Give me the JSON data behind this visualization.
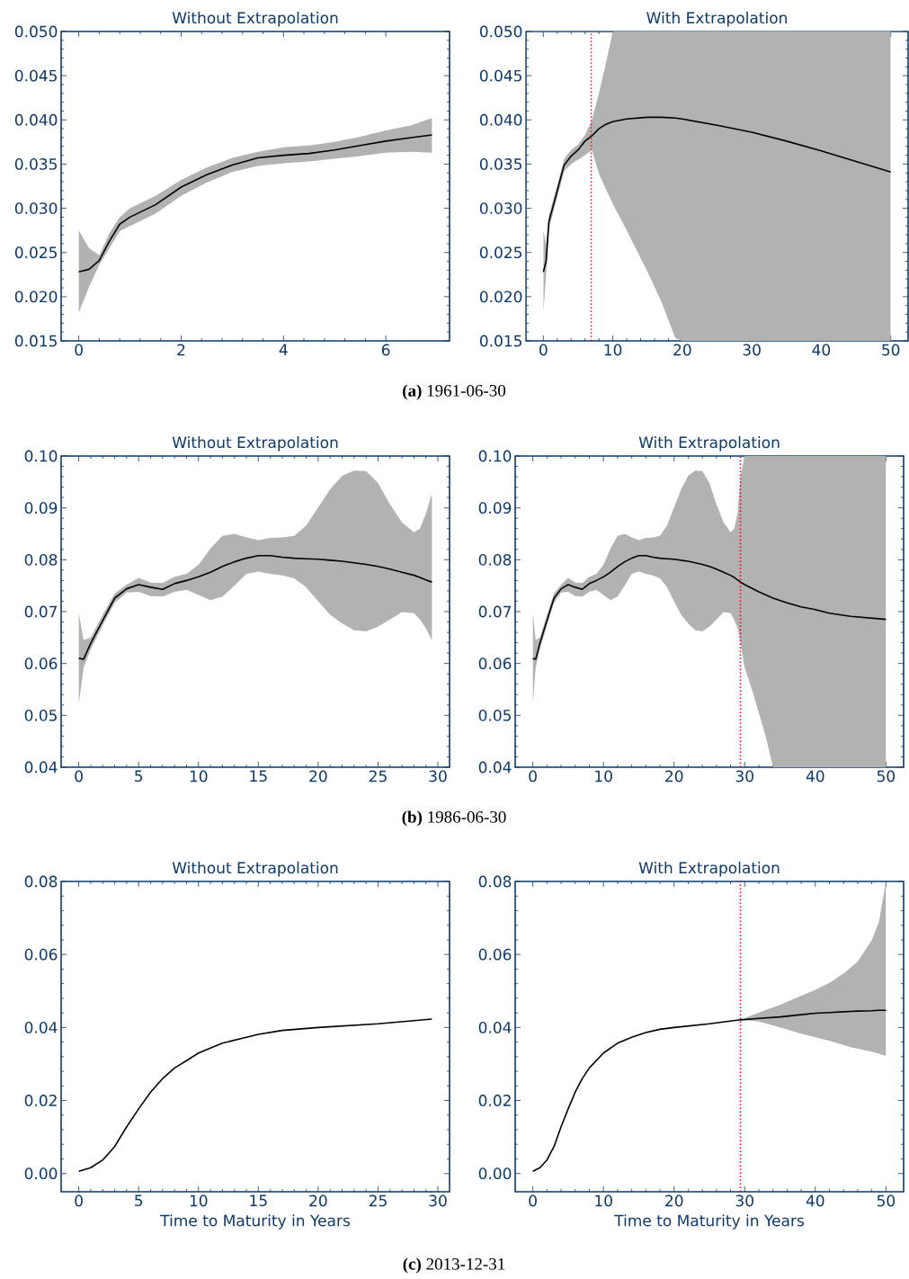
{
  "chart_data": [
    {
      "type": "line",
      "title": "Without Extrapolation",
      "annotations": [
        "**(a)** 1961-06-30"
      ],
      "xlim": [
        -0.345,
        7.245
      ],
      "ylim": [
        0.015,
        0.05
      ],
      "xticks": [
        0,
        2,
        4,
        6
      ],
      "yticks": [
        {
          "value": 0.015,
          "label": "0.015"
        },
        {
          "value": 0.02,
          "label": "0.020"
        },
        {
          "value": 0.025,
          "label": "0.025"
        },
        {
          "value": 0.03,
          "label": "0.030"
        },
        {
          "value": 0.035,
          "label": "0.035"
        },
        {
          "value": 0.04,
          "label": "0.040"
        },
        {
          "value": 0.045,
          "label": "0.045"
        },
        {
          "value": 0.05,
          "label": "0.050"
        }
      ],
      "x": [
        0,
        0.2,
        0.4,
        0.6,
        0.8,
        1,
        1.5,
        2,
        2.5,
        3,
        3.5,
        4,
        4.5,
        5,
        5.5,
        6,
        6.5,
        6.9
      ],
      "series": [
        {
          "color": "#000000",
          "values": [
            0.0228,
            0.0231,
            0.0241,
            0.0263,
            0.0282,
            0.029,
            0.0304,
            0.0324,
            0.0338,
            0.0349,
            0.0357,
            0.036,
            0.0362,
            0.0366,
            0.0371,
            0.0376,
            0.038,
            0.0383
          ],
          "upper": [
            0.0275,
            0.0255,
            0.0247,
            0.0272,
            0.029,
            0.03,
            0.0314,
            0.0332,
            0.0346,
            0.0357,
            0.0364,
            0.0369,
            0.0371,
            0.0375,
            0.0381,
            0.0388,
            0.0394,
            0.0402
          ],
          "lower": [
            0.0182,
            0.0211,
            0.0236,
            0.0255,
            0.0274,
            0.028,
            0.0294,
            0.0314,
            0.0329,
            0.0341,
            0.0348,
            0.0351,
            0.0353,
            0.0356,
            0.0359,
            0.0363,
            0.0364,
            0.0363
          ]
        }
      ]
    },
    {
      "type": "line",
      "title": "With Extrapolation",
      "xlim": [
        -2.5,
        52.5
      ],
      "ylim": [
        0.015,
        0.05
      ],
      "xticks": [
        0,
        10,
        20,
        30,
        40,
        50
      ],
      "yticks": [
        {
          "value": 0.015,
          "label": "0.015"
        },
        {
          "value": 0.02,
          "label": "0.020"
        },
        {
          "value": 0.025,
          "label": "0.025"
        },
        {
          "value": 0.03,
          "label": "0.030"
        },
        {
          "value": 0.035,
          "label": "0.035"
        },
        {
          "value": 0.04,
          "label": "0.040"
        },
        {
          "value": 0.045,
          "label": "0.045"
        },
        {
          "value": 0.05,
          "label": "0.050"
        }
      ],
      "x": [
        0,
        0.4,
        0.8,
        1.5,
        2,
        3,
        4,
        5,
        6,
        7,
        8,
        9,
        10,
        12,
        15,
        17,
        19,
        20,
        25,
        30,
        35,
        40,
        45,
        50
      ],
      "series": [
        {
          "color": "#000000",
          "values": [
            0.0228,
            0.024,
            0.0285,
            0.0305,
            0.032,
            0.0349,
            0.0359,
            0.0366,
            0.0376,
            0.0382,
            0.039,
            0.0395,
            0.0398,
            0.0401,
            0.0403,
            0.0403,
            0.0402,
            0.0401,
            0.0394,
            0.0386,
            0.0376,
            0.0365,
            0.0353,
            0.0341
          ],
          "upper": [
            0.0275,
            0.026,
            0.0292,
            0.0312,
            0.0326,
            0.0356,
            0.0366,
            0.0372,
            0.0383,
            0.04,
            0.043,
            0.0464,
            0.05,
            0.05,
            0.05,
            0.05,
            0.05,
            0.05,
            0.05,
            0.05,
            0.05,
            0.05,
            0.05,
            0.05
          ],
          "lower": [
            0.0182,
            0.0225,
            0.0276,
            0.0298,
            0.0312,
            0.0342,
            0.035,
            0.0355,
            0.036,
            0.0366,
            0.0339,
            0.0322,
            0.0305,
            0.0275,
            0.0228,
            0.0194,
            0.0153,
            0.015,
            0.015,
            0.015,
            0.015,
            0.015,
            0.015,
            0.015
          ]
        }
      ],
      "ref_lines": [
        {
          "axis": "x",
          "value": 6.9,
          "color": "#ff0000",
          "line_style": "dotted"
        }
      ]
    },
    {
      "type": "line",
      "title": "Without Extrapolation",
      "annotations": [
        "**(b)** 1986-06-30"
      ],
      "xlim": [
        -1.475,
        30.975
      ],
      "ylim": [
        0.04,
        0.1
      ],
      "xticks": [
        0,
        5,
        10,
        15,
        20,
        25,
        30
      ],
      "yticks": [
        {
          "value": 0.04,
          "label": "0.04"
        },
        {
          "value": 0.05,
          "label": "0.05"
        },
        {
          "value": 0.06,
          "label": "0.06"
        },
        {
          "value": 0.07,
          "label": "0.07"
        },
        {
          "value": 0.08,
          "label": "0.08"
        },
        {
          "value": 0.09,
          "label": "0.09"
        },
        {
          "value": 0.1,
          "label": "0.10"
        }
      ],
      "x": [
        0,
        0.4,
        1,
        2,
        3,
        4,
        5,
        6,
        7,
        8,
        9,
        10,
        11,
        12,
        13,
        14,
        15,
        16,
        17,
        18,
        19,
        20,
        21,
        22,
        23,
        24,
        25,
        26,
        27,
        28,
        28.5,
        29,
        29.5
      ],
      "series": [
        {
          "color": "#000000",
          "values": [
            0.061,
            0.0608,
            0.0639,
            0.0683,
            0.0726,
            0.0744,
            0.0752,
            0.0747,
            0.0743,
            0.0754,
            0.076,
            0.0767,
            0.0776,
            0.0787,
            0.0796,
            0.0803,
            0.0808,
            0.0808,
            0.0805,
            0.0803,
            0.0802,
            0.0801,
            0.0799,
            0.0797,
            0.0794,
            0.0791,
            0.0787,
            0.0782,
            0.0776,
            0.077,
            0.0766,
            0.0761,
            0.0757
          ],
          "upper": [
            0.0697,
            0.0645,
            0.065,
            0.0694,
            0.0735,
            0.0752,
            0.0765,
            0.0756,
            0.0755,
            0.0767,
            0.0773,
            0.079,
            0.0822,
            0.0846,
            0.085,
            0.0843,
            0.0838,
            0.0842,
            0.0843,
            0.0846,
            0.0866,
            0.0901,
            0.0936,
            0.0962,
            0.0972,
            0.0971,
            0.0948,
            0.0907,
            0.0872,
            0.0853,
            0.086,
            0.0889,
            0.0927
          ],
          "lower": [
            0.0522,
            0.0592,
            0.0627,
            0.0674,
            0.0717,
            0.0737,
            0.0738,
            0.073,
            0.0729,
            0.0738,
            0.0742,
            0.0732,
            0.0722,
            0.0729,
            0.075,
            0.0773,
            0.0777,
            0.0773,
            0.077,
            0.0764,
            0.0747,
            0.072,
            0.0694,
            0.0677,
            0.0664,
            0.0662,
            0.0671,
            0.0685,
            0.0699,
            0.0697,
            0.0685,
            0.0668,
            0.0645
          ]
        }
      ]
    },
    {
      "type": "line",
      "title": "With Extrapolation",
      "xlim": [
        -2.5,
        52.5
      ],
      "ylim": [
        0.04,
        0.1
      ],
      "xticks": [
        0,
        10,
        20,
        30,
        40,
        50
      ],
      "yticks": [
        {
          "value": 0.04,
          "label": "0.04"
        },
        {
          "value": 0.05,
          "label": "0.05"
        },
        {
          "value": 0.06,
          "label": "0.06"
        },
        {
          "value": 0.07,
          "label": "0.07"
        },
        {
          "value": 0.08,
          "label": "0.08"
        },
        {
          "value": 0.09,
          "label": "0.09"
        },
        {
          "value": 0.1,
          "label": "0.10"
        }
      ],
      "x": [
        0,
        0.4,
        1,
        2,
        3,
        4,
        5,
        6,
        7,
        8,
        9,
        10,
        11,
        12,
        13,
        14,
        15,
        16,
        17,
        18,
        19,
        20,
        21,
        22,
        23,
        24,
        25,
        26,
        27,
        28,
        28.5,
        29,
        29.4,
        30,
        31,
        32,
        33,
        34,
        36,
        38,
        40,
        42,
        45,
        50
      ],
      "series": [
        {
          "color": "#000000",
          "values": [
            0.061,
            0.0608,
            0.0639,
            0.0683,
            0.0726,
            0.0744,
            0.0752,
            0.0747,
            0.0743,
            0.0754,
            0.076,
            0.0767,
            0.0776,
            0.0787,
            0.0796,
            0.0803,
            0.0808,
            0.0808,
            0.0805,
            0.0803,
            0.0802,
            0.0801,
            0.0799,
            0.0797,
            0.0794,
            0.0791,
            0.0787,
            0.0782,
            0.0776,
            0.077,
            0.0766,
            0.0761,
            0.0757,
            0.0752,
            0.0745,
            0.0738,
            0.0732,
            0.0726,
            0.0717,
            0.0709,
            0.0704,
            0.0697,
            0.0691,
            0.0685
          ],
          "upper": [
            0.0697,
            0.0645,
            0.065,
            0.0694,
            0.0735,
            0.0752,
            0.0765,
            0.0756,
            0.0755,
            0.0767,
            0.0773,
            0.079,
            0.0822,
            0.0846,
            0.085,
            0.0843,
            0.0838,
            0.0842,
            0.0843,
            0.0846,
            0.0866,
            0.0901,
            0.0936,
            0.0962,
            0.0972,
            0.0971,
            0.0948,
            0.0907,
            0.0872,
            0.0853,
            0.086,
            0.0889,
            0.096,
            0.1,
            0.1,
            0.1,
            0.1,
            0.1,
            0.1,
            0.1,
            0.1,
            0.1,
            0.1,
            0.1
          ],
          "lower": [
            0.0522,
            0.0592,
            0.0627,
            0.0674,
            0.0717,
            0.0737,
            0.0738,
            0.073,
            0.0729,
            0.0738,
            0.0742,
            0.0732,
            0.0722,
            0.0729,
            0.075,
            0.0773,
            0.0777,
            0.0773,
            0.077,
            0.0764,
            0.0747,
            0.072,
            0.0694,
            0.0677,
            0.0664,
            0.0662,
            0.0671,
            0.0685,
            0.0699,
            0.0697,
            0.0685,
            0.0668,
            0.0639,
            0.0592,
            0.0551,
            0.0505,
            0.0458,
            0.04,
            0.04,
            0.04,
            0.04,
            0.04,
            0.04,
            0.04
          ]
        }
      ],
      "ref_lines": [
        {
          "axis": "x",
          "value": 29.4,
          "color": "#ff0000",
          "line_style": "dotted"
        }
      ]
    },
    {
      "type": "line",
      "title": "Without Extrapolation",
      "xlabel": "Time to Maturity in Years",
      "annotations": [
        "**(c)** 2013-12-31"
      ],
      "xlim": [
        -1.475,
        30.975
      ],
      "ylim": [
        -0.005,
        0.08
      ],
      "xticks": [
        0,
        5,
        10,
        15,
        20,
        25,
        30
      ],
      "yticks": [
        {
          "value": 0,
          "label": "0.00"
        },
        {
          "value": 0.02,
          "label": "0.02"
        },
        {
          "value": 0.04,
          "label": "0.04"
        },
        {
          "value": 0.06,
          "label": "0.06"
        },
        {
          "value": 0.08,
          "label": "0.08"
        }
      ],
      "x": [
        0,
        1,
        2,
        3,
        4,
        5,
        6,
        7,
        8,
        9,
        10,
        12,
        14,
        15,
        17,
        20,
        25,
        29.5
      ],
      "series": [
        {
          "color": "#000000",
          "values": [
            0.0006,
            0.0016,
            0.0037,
            0.0074,
            0.0128,
            0.0177,
            0.0223,
            0.026,
            0.0289,
            0.0309,
            0.033,
            0.0357,
            0.0373,
            0.0381,
            0.0392,
            0.04,
            0.041,
            0.0423
          ]
        }
      ]
    },
    {
      "type": "line",
      "title": "With Extrapolation",
      "xlabel": "Time to Maturity in Years",
      "xlim": [
        -2.5,
        52.5
      ],
      "ylim": [
        -0.005,
        0.08
      ],
      "xticks": [
        0,
        10,
        20,
        30,
        40,
        50
      ],
      "yticks": [
        {
          "value": 0,
          "label": "0.00"
        },
        {
          "value": 0.02,
          "label": "0.02"
        },
        {
          "value": 0.04,
          "label": "0.04"
        },
        {
          "value": 0.06,
          "label": "0.06"
        },
        {
          "value": 0.08,
          "label": "0.08"
        }
      ],
      "x": [
        0,
        1,
        2,
        3,
        4,
        5,
        6,
        7,
        8,
        10,
        12,
        14,
        16,
        18,
        20,
        25,
        29.4,
        32,
        35,
        38,
        40,
        42,
        44,
        45,
        46,
        48,
        49,
        50
      ],
      "series": [
        {
          "color": "#000000",
          "values": [
            0.0006,
            0.0016,
            0.0037,
            0.0074,
            0.0128,
            0.0177,
            0.0223,
            0.026,
            0.0289,
            0.033,
            0.0357,
            0.0373,
            0.0386,
            0.0395,
            0.04,
            0.041,
            0.0421,
            0.0425,
            0.0429,
            0.0435,
            0.0439,
            0.0441,
            0.0443,
            0.0444,
            0.0445,
            0.0446,
            0.0447,
            0.0447
          ],
          "upper": [
            null,
            null,
            null,
            null,
            null,
            null,
            null,
            null,
            null,
            null,
            null,
            null,
            null,
            null,
            null,
            null,
            0.0421,
            0.0441,
            0.0462,
            0.0487,
            0.0503,
            0.0522,
            0.0548,
            0.0564,
            0.0581,
            0.0639,
            0.0689,
            0.08
          ],
          "lower": [
            null,
            null,
            null,
            null,
            null,
            null,
            null,
            null,
            null,
            null,
            null,
            null,
            null,
            null,
            null,
            null,
            0.0421,
            0.0416,
            0.04,
            0.0383,
            0.0373,
            0.0363,
            0.0352,
            0.0346,
            0.0342,
            0.0334,
            0.0328,
            0.0322
          ]
        }
      ],
      "ref_lines": [
        {
          "axis": "x",
          "value": 29.4,
          "color": "#ff0000",
          "line_style": "dotted"
        }
      ]
    }
  ]
}
